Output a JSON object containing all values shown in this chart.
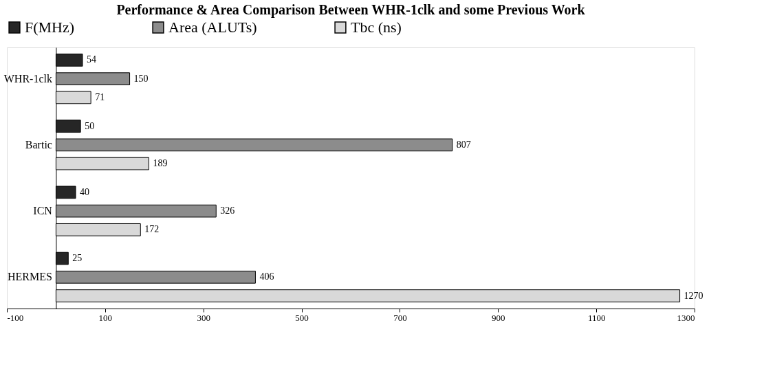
{
  "chart_data": {
    "type": "bar",
    "orientation": "horizontal",
    "title": "Performance & Area Comparison Between WHR-1clk and some Previous Work",
    "categories": [
      "WHR-1clk",
      "Bartic",
      "ICN",
      "HERMES"
    ],
    "series": [
      {
        "name": "F(MHz)",
        "color": "#262626",
        "values": [
          54,
          50,
          40,
          25
        ]
      },
      {
        "name": "Area (ALUTs)",
        "color": "#8c8c8c",
        "values": [
          150,
          807,
          326,
          406
        ]
      },
      {
        "name": "Tbc (ns)",
        "color": "#d9d9d9",
        "values": [
          71,
          189,
          172,
          1270
        ]
      }
    ],
    "xlim": [
      -100,
      1300
    ],
    "xticks": [
      -100,
      100,
      300,
      500,
      700,
      900,
      1100,
      1300
    ],
    "data_labels": true,
    "legend": "top",
    "grid": false
  }
}
